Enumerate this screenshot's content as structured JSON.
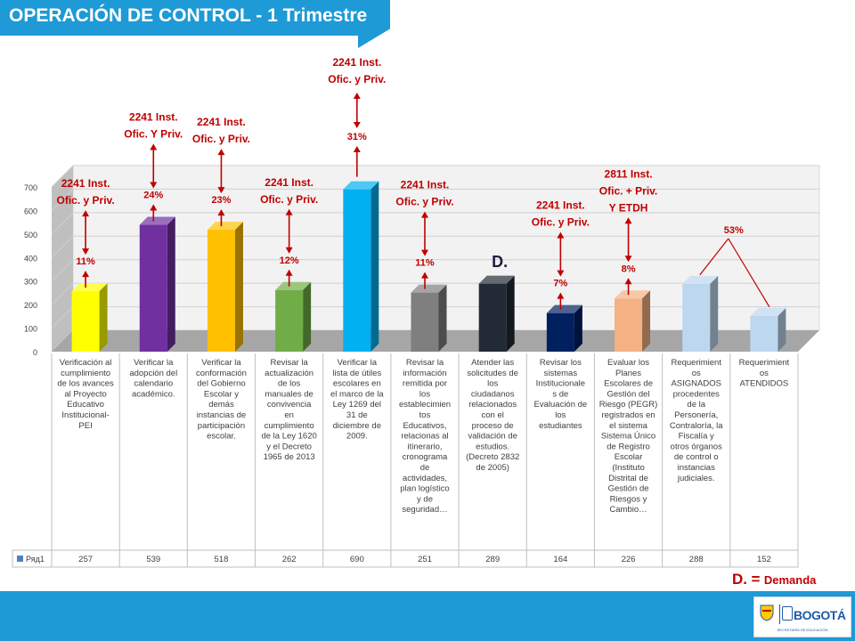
{
  "header": {
    "title": "OPERACIÓN DE CONTROL - 1 Trimestre"
  },
  "legend_note": {
    "mark": "D.",
    "eq": "=",
    "text": "Demanda"
  },
  "logo": {
    "text": "BOGOTÁ",
    "subtext": "SECRETARÍA DE EDUCACIÓN"
  },
  "chart_data": {
    "type": "bar",
    "ylim": [
      0,
      700
    ],
    "yticks": [
      0,
      100,
      200,
      300,
      400,
      500,
      600,
      700
    ],
    "series_name": "Ряд1",
    "categories": [
      [
        "Verificación al",
        "cumplimiento",
        "de los avances",
        "al Proyecto",
        "Educativo",
        "Institucional-",
        "PEI"
      ],
      [
        "Verificar la",
        "adopción del",
        "calendario",
        "académico."
      ],
      [
        "Verificar la",
        "conformación",
        "del Gobierno",
        "Escolar y",
        "demás",
        "instancias de",
        "participación",
        "escolar."
      ],
      [
        "Revisar la",
        "actualización",
        "de los",
        "manuales de",
        "convivencia",
        "en",
        "cumplimiento",
        "de la Ley 1620",
        "y el Decreto",
        "1965 de 2013"
      ],
      [
        "Verificar la",
        "lista de útiles",
        "escolares en",
        "el marco de la",
        "Ley 1269 del",
        "31 de",
        "diciembre de",
        "2009."
      ],
      [
        "Revisar la",
        "información",
        "remitida por",
        "los",
        "establecimien",
        "tos",
        "Educativos,",
        "relacionas al",
        "itinerario,",
        "cronograma",
        "de",
        "actividades,",
        "plan logístico",
        "y de",
        "seguridad…"
      ],
      [
        "Atender las",
        "solicitudes de",
        "los",
        "ciudadanos",
        "relacionados",
        "con el",
        "proceso de",
        "validación de",
        "estudios.",
        "(Decreto 2832",
        "de 2005)"
      ],
      [
        "Revisar los",
        "sistemas",
        "Institucionale",
        "s de",
        "Evaluación de",
        "los",
        "estudiantes"
      ],
      [
        "Evaluar los",
        "Planes",
        "Escolares de",
        "Gestión del",
        "Riesgo (PEGR)",
        "registrados en",
        "el sistema",
        "Sistema Único",
        "de Registro",
        "Escolar",
        "(Instituto",
        "Distrital de",
        "Gestión de",
        "Riesgos y",
        "Cambio…"
      ],
      [
        "Requerimient",
        "os",
        "ASIGNADOS",
        "procedentes",
        "de la",
        "Personería,",
        "Contraloría, la",
        "Fiscalía y",
        "otros órganos",
        "de control o",
        "instancias",
        "judiciales."
      ],
      [
        "Requerimient",
        "os",
        "ATENDIDOS"
      ]
    ],
    "values": [
      257,
      539,
      518,
      262,
      690,
      251,
      289,
      164,
      226,
      288,
      152
    ],
    "colors": [
      "#ffff00",
      "#7030a0",
      "#ffc000",
      "#70ad47",
      "#00b0f0",
      "#7f7f7f",
      "#222a35",
      "#002060",
      "#f4b183",
      "#bdd7ee",
      "#bdd7ee"
    ],
    "percent_labels": [
      "11%",
      "24%",
      "23%",
      "12%",
      "",
      "11%",
      "",
      "7%",
      "8%",
      "",
      ""
    ],
    "top_percent": {
      "index": 4,
      "text": "31%"
    },
    "demand_labels": [
      [
        "2241 Inst.",
        "Ofic. y Priv."
      ],
      [
        "2241 Inst.",
        "Ofic. Y Priv."
      ],
      [
        "2241 Inst.",
        "Ofic. y Priv."
      ],
      [
        "2241 Inst.",
        "Ofic. y Priv."
      ],
      [
        "2241 Inst.",
        "Ofic. y Priv."
      ],
      [
        "2241 Inst.",
        "Ofic. y Priv."
      ],
      [],
      [
        "2241 Inst.",
        "Ofic. y Priv."
      ],
      [
        "2811 Inst.",
        "Ofic. + Priv.",
        "Y ETDH"
      ],
      [],
      []
    ],
    "d_marker": {
      "index": 6,
      "text": "D."
    },
    "ratio_label": {
      "text": "53%",
      "from_index": 9,
      "to_index": 10
    },
    "label_color": "#c00000",
    "grid": true
  }
}
